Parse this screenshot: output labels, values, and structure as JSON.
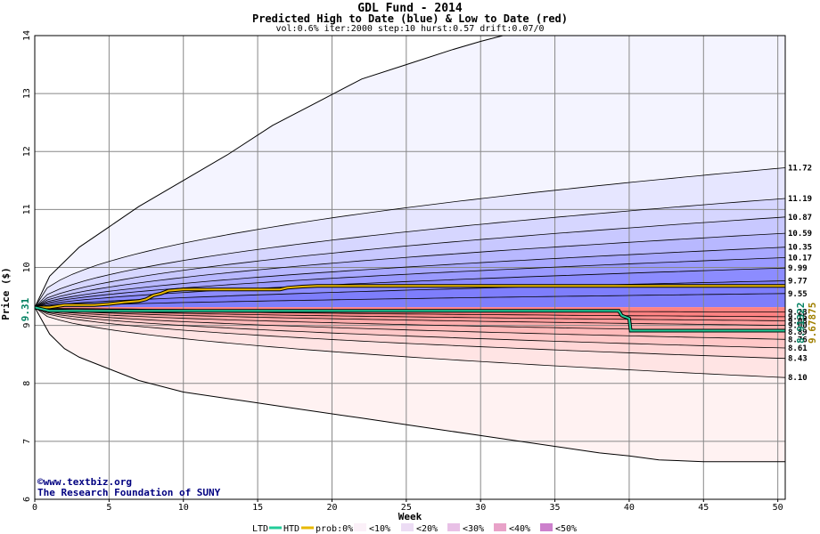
{
  "chart_data": {
    "type": "area",
    "title": "GDL Fund - 2014",
    "subtitle": "Predicted High to Date (blue) &  Low to Date (red)",
    "params": "vol:0.6% iter:2000 step:10 hurst:0.57 drift:0.07/0",
    "xlabel": "Week",
    "ylabel": "Price ($)",
    "xlim": [
      0,
      50.5
    ],
    "ylim": [
      6,
      14
    ],
    "xticks": [
      0,
      5,
      10,
      15,
      20,
      25,
      30,
      35,
      40,
      45,
      50
    ],
    "yticks": [
      6,
      7,
      8,
      9,
      10,
      11,
      12,
      13,
      14
    ],
    "start_price": 9.31,
    "start_price_label": "9.31",
    "htd_final_label": "9.67875",
    "ltd_final_label": "8.91322",
    "high_bands": [
      {
        "label": "11.72",
        "end": 11.72,
        "shape": 0.48
      },
      {
        "label": "11.19",
        "end": 11.19,
        "shape": 0.52
      },
      {
        "label": "10.87",
        "end": 10.87,
        "shape": 0.55
      },
      {
        "label": "10.59",
        "end": 10.59,
        "shape": 0.56
      },
      {
        "label": "10.35",
        "end": 10.35,
        "shape": 0.57
      },
      {
        "label": "10.17",
        "end": 10.17,
        "shape": 0.58
      },
      {
        "label": "9.99",
        "end": 9.99,
        "shape": 0.6
      },
      {
        "label": "9.77",
        "end": 9.77,
        "shape": 0.62
      },
      {
        "label": "9.55",
        "end": 9.55,
        "shape": 0.65
      }
    ],
    "low_bands": [
      {
        "label": "9.23",
        "end": 9.23,
        "shape": 0.5
      },
      {
        "label": "9.15",
        "end": 9.15,
        "shape": 0.5
      },
      {
        "label": "9.08",
        "end": 9.08,
        "shape": 0.5
      },
      {
        "label": "9.00",
        "end": 9.0,
        "shape": 0.5
      },
      {
        "label": "8.89",
        "end": 8.89,
        "shape": 0.5
      },
      {
        "label": "8.76",
        "end": 8.76,
        "shape": 0.5
      },
      {
        "label": "8.61",
        "end": 8.61,
        "shape": 0.5
      },
      {
        "label": "8.43",
        "end": 8.43,
        "shape": 0.5
      },
      {
        "label": "8.10",
        "end": 8.1,
        "shape": 0.5
      }
    ],
    "outer_high": [
      [
        0,
        9.31
      ],
      [
        1,
        9.85
      ],
      [
        2,
        10.1
      ],
      [
        3,
        10.35
      ],
      [
        5,
        10.7
      ],
      [
        7,
        11.05
      ],
      [
        10,
        11.5
      ],
      [
        13,
        11.95
      ],
      [
        16,
        12.45
      ],
      [
        19,
        12.85
      ],
      [
        22,
        13.25
      ],
      [
        25,
        13.5
      ],
      [
        28,
        13.75
      ],
      [
        30,
        13.9
      ],
      [
        31.5,
        14.0
      ]
    ],
    "outer_low": [
      [
        0,
        9.31
      ],
      [
        1,
        8.85
      ],
      [
        2,
        8.6
      ],
      [
        3,
        8.45
      ],
      [
        5,
        8.25
      ],
      [
        7,
        8.05
      ],
      [
        10,
        7.85
      ],
      [
        14,
        7.7
      ],
      [
        18,
        7.55
      ],
      [
        22,
        7.4
      ],
      [
        26,
        7.25
      ],
      [
        30,
        7.1
      ],
      [
        34,
        6.95
      ],
      [
        38,
        6.8
      ],
      [
        40,
        6.75
      ],
      [
        42,
        6.68
      ],
      [
        45,
        6.65
      ],
      [
        50.5,
        6.65
      ]
    ],
    "htd_series": [
      [
        0,
        9.31
      ],
      [
        1,
        9.31
      ],
      [
        2,
        9.35
      ],
      [
        3,
        9.35
      ],
      [
        4,
        9.35
      ],
      [
        5,
        9.37
      ],
      [
        6,
        9.4
      ],
      [
        7,
        9.42
      ],
      [
        7.5,
        9.45
      ],
      [
        8,
        9.52
      ],
      [
        8.5,
        9.55
      ],
      [
        9,
        9.6
      ],
      [
        10,
        9.62
      ],
      [
        12,
        9.62
      ],
      [
        14,
        9.62
      ],
      [
        16.5,
        9.62
      ],
      [
        17,
        9.65
      ],
      [
        18,
        9.67
      ],
      [
        19,
        9.68
      ],
      [
        25,
        9.68
      ],
      [
        30,
        9.68
      ],
      [
        40,
        9.68
      ],
      [
        50.5,
        9.68
      ]
    ],
    "ltd_series": [
      [
        0,
        9.31
      ],
      [
        1,
        9.25
      ],
      [
        2,
        9.25
      ],
      [
        3,
        9.25
      ],
      [
        5,
        9.25
      ],
      [
        10,
        9.25
      ],
      [
        15,
        9.25
      ],
      [
        20,
        9.25
      ],
      [
        25,
        9.25
      ],
      [
        30,
        9.25
      ],
      [
        35,
        9.25
      ],
      [
        39.3,
        9.25
      ],
      [
        39.5,
        9.17
      ],
      [
        40,
        9.12
      ],
      [
        40.1,
        8.91
      ],
      [
        45,
        8.91
      ],
      [
        50.5,
        8.91
      ]
    ],
    "legend": {
      "ltd": "LTD",
      "htd": "HTD",
      "prob": "prob:0%",
      "items": [
        "<10%",
        "<20%",
        "<30%",
        "<40%",
        "<50%"
      ]
    },
    "credit_line1": "©www.textbiz.org",
    "credit_line2": "The Research Foundation of SUNY"
  },
  "colors": {
    "high_fills": [
      "#f4f4ff",
      "#e6e6ff",
      "#d6d6ff",
      "#c8c8ff",
      "#b8b8ff",
      "#a8a8ff",
      "#9a9aff",
      "#8c8cff",
      "#7e7efc"
    ],
    "low_fills": [
      "#fff2f2",
      "#ffe4e4",
      "#ffd6d6",
      "#ffc8c8",
      "#ffbaba",
      "#ffacac",
      "#ff9e9e",
      "#ff9090",
      "#ff8282"
    ],
    "legend_swatches": [
      "#fbf0f8",
      "#ecdcf4",
      "#e8c0e6",
      "#e8a2c8",
      "#cc80cc"
    ],
    "htd": "#e8b800",
    "ltd": "#22cc99",
    "htd_label": "#a08000",
    "ltd_label": "#008060",
    "start_label": "#008060",
    "credit": "#000080"
  }
}
